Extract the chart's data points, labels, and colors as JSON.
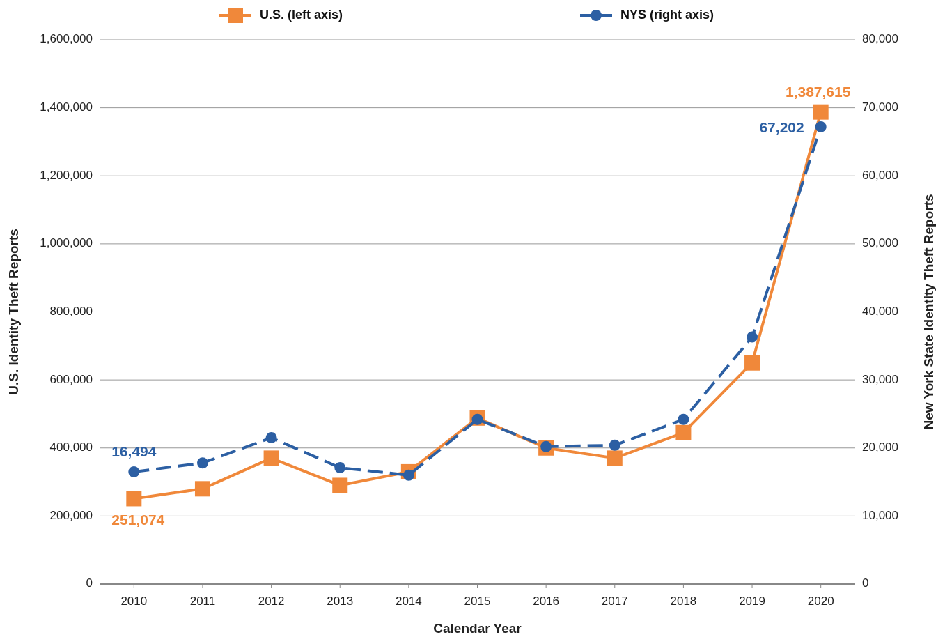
{
  "chart_data": {
    "type": "line",
    "xlabel": "Calendar Year",
    "ylabel": "U.S. Identity Theft Reports",
    "y2label": "New York State Identity Theft Reports",
    "categories": [
      "2010",
      "2011",
      "2012",
      "2013",
      "2014",
      "2015",
      "2016",
      "2017",
      "2018",
      "2019",
      "2020"
    ],
    "series": [
      {
        "name": "U.S. (left axis)",
        "color": "#f0883a",
        "marker": "square",
        "line_style": "solid",
        "values": [
          251074,
          280000,
          370000,
          290000,
          330000,
          488000,
          400000,
          370000,
          445000,
          650000,
          1387615
        ],
        "value_labels": [
          "251,074",
          null,
          null,
          null,
          null,
          null,
          null,
          null,
          null,
          null,
          "1,387,615"
        ]
      },
      {
        "name": "NYS (right axis)",
        "color": "#2c5fa3",
        "marker": "circle",
        "line_style": "dashed",
        "axis": "y2",
        "values": [
          16494,
          17800,
          21500,
          17100,
          16000,
          24200,
          20200,
          20400,
          24200,
          36300,
          67202
        ],
        "value_labels": [
          "16,494",
          null,
          null,
          null,
          null,
          null,
          null,
          null,
          null,
          null,
          "67,202"
        ]
      }
    ],
    "ylim": [
      0,
      1600000
    ],
    "yticks": [
      0,
      {
        "value": 200000,
        "label": "200,000"
      },
      {
        "value": 400000,
        "label": "400,000"
      },
      {
        "value": 600000,
        "label": "600,000"
      },
      {
        "value": 800000,
        "label": "800,000"
      },
      {
        "value": 1000000,
        "label": "1,000,000"
      },
      {
        "value": 1200000,
        "label": "1,200,000"
      },
      {
        "value": 1400000,
        "label": "1,400,000"
      },
      {
        "value": 1600000,
        "label": "1,600,000"
      }
    ],
    "y2lim": [
      0,
      80000
    ],
    "y2ticks": [
      0,
      {
        "value": 10000,
        "label": "10,000"
      },
      {
        "value": 20000,
        "label": "20,000"
      },
      {
        "value": 30000,
        "label": "30,000"
      },
      {
        "value": 40000,
        "label": "40,000"
      },
      {
        "value": 50000,
        "label": "50,000"
      },
      {
        "value": 60000,
        "label": "60,000"
      },
      {
        "value": 70000,
        "label": "70,000"
      },
      {
        "value": 80000,
        "label": "80,000"
      }
    ],
    "grid": "y",
    "legend": "top"
  }
}
